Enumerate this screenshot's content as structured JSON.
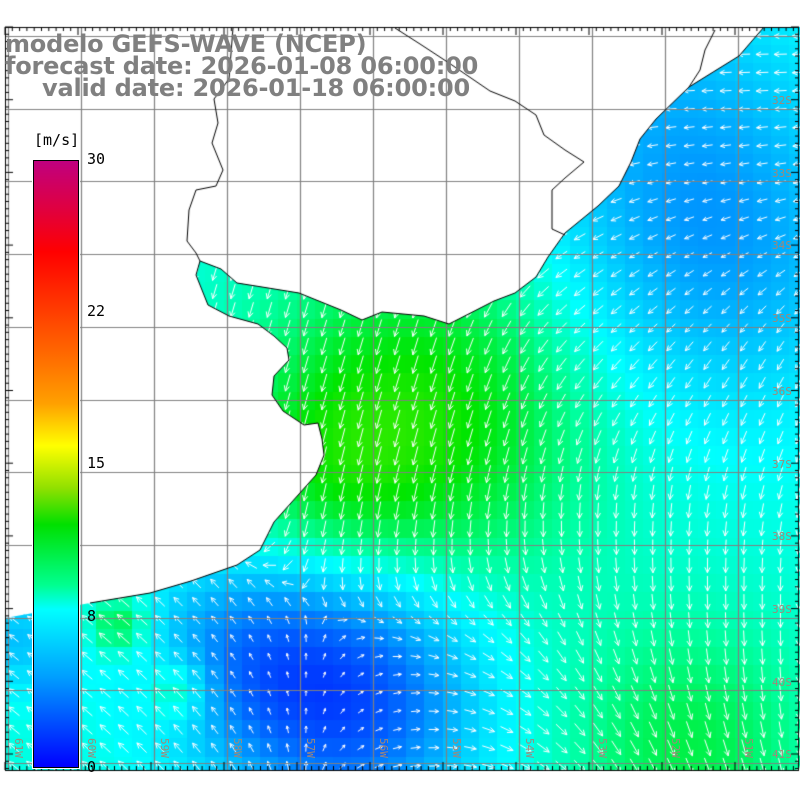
{
  "title": {
    "model": "modelo GEFS-WAVE (NCEP)",
    "forecast": "forecast date: 2026-01-08 06:00:00",
    "valid": "valid date: 2026-01-18 06:00:00"
  },
  "colorbar": {
    "unit": "[m/s]",
    "ticks": [
      "30",
      "22",
      "15",
      "8",
      "0"
    ]
  },
  "lat_labels": [
    "32S",
    "33S",
    "34S",
    "35S",
    "36S",
    "37S",
    "38S",
    "39S",
    "40S",
    "41S"
  ],
  "lon_labels": [
    "61W",
    "60W",
    "59W",
    "58W",
    "57W",
    "56W",
    "55W",
    "54W",
    "53W",
    "52W",
    "51W"
  ],
  "colors": {
    "grid": "#808080",
    "coast": "#000000",
    "arrow": "#ffffff",
    "title": "#808080"
  }
}
